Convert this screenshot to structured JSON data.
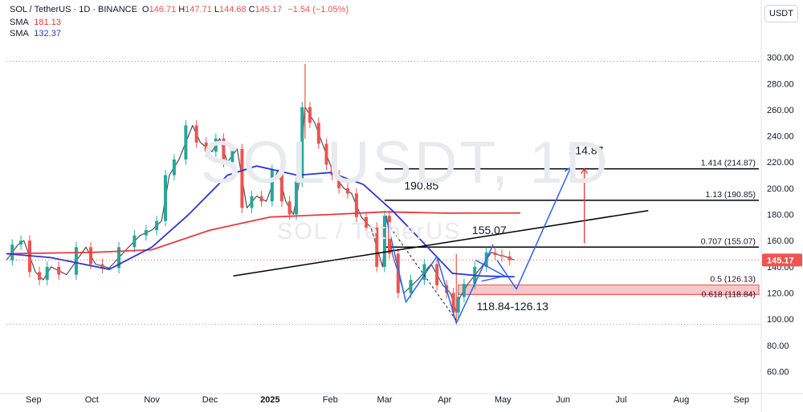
{
  "header": {
    "title": "SOL / TetherUS · 1D · BINANCE",
    "ohlc": [
      {
        "label": "O",
        "value": "146.71"
      },
      {
        "label": "H",
        "value": "147.71"
      },
      {
        "label": "L",
        "value": "144.68"
      },
      {
        "label": "C",
        "value": "145.17"
      }
    ],
    "change": "−1.54 (−1.05%)",
    "indicators": [
      {
        "name": "SMA",
        "value": "181.13",
        "color": "#e8393f"
      },
      {
        "name": "SMA",
        "value": "132.37",
        "color": "#2b37d4"
      }
    ]
  },
  "currency_badge": "USDT",
  "watermark": {
    "symbol": "SOLUSDT, 1D",
    "pair": "SOL / TetherUS"
  },
  "colors": {
    "up": "#26a69a",
    "down": "#ef5350",
    "sma_long": "#e8393f",
    "sma_short": "#2b37d4",
    "projection": "#2962ff",
    "zone_fill": "#f8c6c8",
    "target_arrow": "#e8393f",
    "level": "#000000"
  },
  "chart_data": {
    "type": "candlestick",
    "symbol": "SOLUSDT",
    "timeframe": "1D",
    "exchange": "BINANCE",
    "x_axis": {
      "type": "date",
      "range": [
        "2024-08-18",
        "2025-09-10"
      ],
      "tick_labels": [
        "Sep",
        "Oct",
        "Nov",
        "Dec",
        "2025",
        "Feb",
        "Mar",
        "Apr",
        "May",
        "Jun",
        "Jul",
        "Aug",
        "Sep"
      ],
      "tick_dates": [
        "2024-09-01",
        "2024-10-01",
        "2024-11-01",
        "2024-12-01",
        "2025-01-01",
        "2025-02-01",
        "2025-03-01",
        "2025-04-01",
        "2025-05-01",
        "2025-06-01",
        "2025-07-01",
        "2025-08-01",
        "2025-09-01"
      ]
    },
    "y_axis": {
      "range": [
        45,
        312
      ],
      "position": "right",
      "ticks": [
        "60.00",
        "80.00",
        "100.00",
        "120.00",
        "140.00",
        "160.00",
        "180.00",
        "200.00",
        "220.00",
        "240.00",
        "260.00",
        "280.00",
        "300.00"
      ]
    },
    "last_price": {
      "value": 145.17,
      "label": "145.17"
    },
    "price_path": [
      [
        "2024-08-18",
        145
      ],
      [
        "2024-08-24",
        157
      ],
      [
        "2024-08-27",
        160
      ],
      [
        "2024-09-02",
        136
      ],
      [
        "2024-09-06",
        130
      ],
      [
        "2024-09-10",
        140
      ],
      [
        "2024-09-18",
        134
      ],
      [
        "2024-09-28",
        155
      ],
      [
        "2024-10-03",
        142
      ],
      [
        "2024-10-10",
        139
      ],
      [
        "2024-10-20",
        155
      ],
      [
        "2024-10-26",
        164
      ],
      [
        "2024-11-01",
        168
      ],
      [
        "2024-11-06",
        175
      ],
      [
        "2024-11-10",
        210
      ],
      [
        "2024-11-15",
        222
      ],
      [
        "2024-11-22",
        248
      ],
      [
        "2024-11-26",
        235
      ],
      [
        "2024-12-02",
        228
      ],
      [
        "2024-12-06",
        238
      ],
      [
        "2024-12-10",
        220
      ],
      [
        "2024-12-15",
        230
      ],
      [
        "2024-12-20",
        185
      ],
      [
        "2024-12-25",
        194
      ],
      [
        "2024-12-30",
        190
      ],
      [
        "2025-01-05",
        214
      ],
      [
        "2025-01-09",
        190
      ],
      [
        "2025-01-13",
        180
      ],
      [
        "2025-01-16",
        205
      ],
      [
        "2025-01-19",
        262
      ],
      [
        "2025-01-24",
        250
      ],
      [
        "2025-01-28",
        234
      ],
      [
        "2025-02-01",
        218
      ],
      [
        "2025-02-03",
        210
      ],
      [
        "2025-02-08",
        200
      ],
      [
        "2025-02-12",
        196
      ],
      [
        "2025-02-17",
        178
      ],
      [
        "2025-02-22",
        170
      ],
      [
        "2025-02-28",
        140
      ],
      [
        "2025-03-02",
        179
      ],
      [
        "2025-03-05",
        150
      ],
      [
        "2025-03-11",
        120
      ],
      [
        "2025-03-18",
        130
      ],
      [
        "2025-03-25",
        142
      ],
      [
        "2025-03-31",
        126
      ],
      [
        "2025-04-04",
        120
      ],
      [
        "2025-04-07",
        105
      ],
      [
        "2025-04-09",
        117
      ],
      [
        "2025-04-13",
        127
      ],
      [
        "2025-04-20",
        140
      ],
      [
        "2025-04-25",
        151
      ],
      [
        "2025-04-29",
        149
      ],
      [
        "2025-05-02",
        148
      ],
      [
        "2025-05-07",
        145.17
      ]
    ],
    "spikes": [
      {
        "date": "2025-01-19",
        "high": 295,
        "low": 238
      },
      {
        "date": "2025-04-07",
        "high": 150,
        "low": 96
      }
    ],
    "series": [
      {
        "name": "SMA",
        "value": 181.13,
        "color": "#e8393f",
        "points": [
          [
            "2024-08-18",
            150
          ],
          [
            "2024-10-01",
            151
          ],
          [
            "2024-11-01",
            153
          ],
          [
            "2024-12-01",
            168
          ],
          [
            "2025-01-01",
            178
          ],
          [
            "2025-02-01",
            180
          ],
          [
            "2025-03-01",
            182
          ],
          [
            "2025-04-01",
            181
          ],
          [
            "2025-05-10",
            181.13
          ]
        ]
      },
      {
        "name": "SMA",
        "value": 132.37,
        "color": "#2b37d4",
        "points": [
          [
            "2024-08-18",
            150
          ],
          [
            "2024-09-10",
            147
          ],
          [
            "2024-10-10",
            138
          ],
          [
            "2024-11-01",
            155
          ],
          [
            "2024-11-20",
            180
          ],
          [
            "2024-12-10",
            210
          ],
          [
            "2024-12-25",
            217
          ],
          [
            "2025-01-15",
            210
          ],
          [
            "2025-02-01",
            212
          ],
          [
            "2025-02-18",
            203
          ],
          [
            "2025-03-05",
            183
          ],
          [
            "2025-03-20",
            160
          ],
          [
            "2025-04-05",
            135
          ],
          [
            "2025-04-20",
            133
          ],
          [
            "2025-05-07",
            132.37
          ]
        ]
      }
    ],
    "levels": [
      {
        "label": "1.414 (214.87)",
        "value": 214.87
      },
      {
        "label": "1.13 (190.85)",
        "value": 190.85
      },
      {
        "label": "0.707 (155.07)",
        "value": 155.07
      },
      {
        "label": "0.5 (126.13)",
        "value": 126.13
      },
      {
        "label": "0.618 (118.84)",
        "value": 118.84
      }
    ],
    "level_start_date": "2025-03-01",
    "zone": {
      "from": 118.84,
      "to": 126.13,
      "start_date": "2025-04-08",
      "label": "118.84-126.13"
    },
    "dotted_levels": [
      96,
      297
    ],
    "trendline": [
      [
        "2024-12-13",
        133
      ],
      [
        "2025-07-15",
        183
      ]
    ],
    "pattern_lines": [
      [
        [
          "2025-03-02",
          177
        ],
        [
          "2025-03-12",
          113
        ],
        [
          "2025-03-28",
          148
        ],
        [
          "2025-04-07",
          97
        ],
        [
          "2025-04-26",
          157
        ]
      ],
      [
        [
          "2025-04-28",
          145
        ],
        [
          "2025-05-08",
          123
        ],
        [
          "2025-06-05",
          216
        ]
      ]
    ],
    "dashed_line": [
      [
        "2025-03-04",
        170
      ],
      [
        "2025-04-07",
        99
      ]
    ],
    "small_loop": [
      [
        "2025-04-17",
        145
      ],
      [
        "2025-05-02",
        133
      ],
      [
        "2025-04-20",
        129
      ]
    ],
    "target_arrow": {
      "date": "2025-06-12",
      "from": 158,
      "to": 214.87
    },
    "annotations": [
      {
        "text": "214.87",
        "date": "2025-06-13",
        "price": 226
      },
      {
        "text": "190.85",
        "date": "2025-03-20",
        "price": 199
      },
      {
        "text": "155.07",
        "date": "2025-04-24",
        "price": 165
      },
      {
        "text": "118.84-126.13",
        "date": "2025-05-06",
        "price": 107
      }
    ]
  }
}
